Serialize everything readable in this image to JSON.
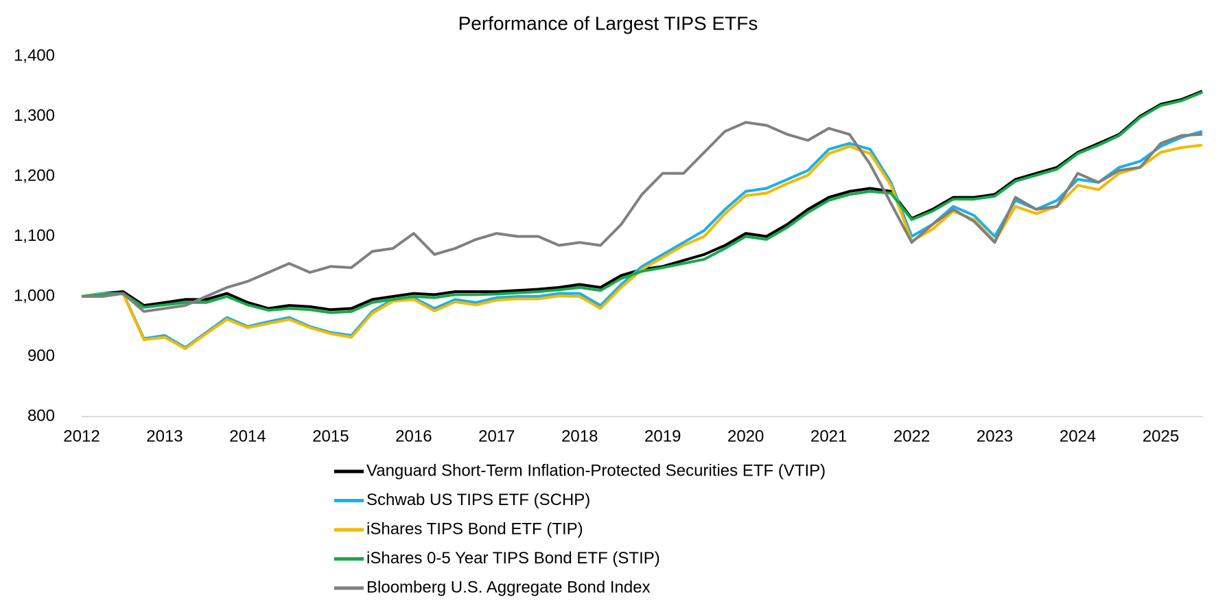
{
  "chart_data": {
    "type": "line",
    "title": "Performance of Largest TIPS ETFs",
    "x": [
      2012,
      2012.25,
      2012.5,
      2012.75,
      2013,
      2013.25,
      2013.5,
      2013.75,
      2014,
      2014.25,
      2014.5,
      2014.75,
      2015,
      2015.25,
      2015.5,
      2015.75,
      2016,
      2016.25,
      2016.5,
      2016.75,
      2017,
      2017.25,
      2017.5,
      2017.75,
      2018,
      2018.25,
      2018.5,
      2018.75,
      2019,
      2019.25,
      2019.5,
      2019.75,
      2020,
      2020.25,
      2020.5,
      2020.75,
      2021,
      2021.25,
      2021.5,
      2021.75,
      2022,
      2022.25,
      2022.5,
      2022.75,
      2023,
      2023.25,
      2023.5,
      2023.75,
      2024,
      2024.25,
      2024.5,
      2024.75,
      2025,
      2025.25,
      2025.5
    ],
    "xlim": [
      2012,
      2025.5
    ],
    "xticks": [
      2012,
      2013,
      2014,
      2015,
      2016,
      2017,
      2018,
      2019,
      2020,
      2021,
      2022,
      2023,
      2024,
      2025
    ],
    "ylim": [
      800,
      1400
    ],
    "yticks": [
      800,
      900,
      {
        "value": 1000,
        "label": "1,000"
      },
      {
        "value": 1100,
        "label": "1,100"
      },
      {
        "value": 1200,
        "label": "1,200"
      },
      {
        "value": 1300,
        "label": "1,300"
      },
      {
        "value": 1400,
        "label": "1,400"
      }
    ],
    "series": [
      {
        "name": "Vanguard Short-Term Inflation-Protected Securities ETF (VTIP)",
        "color": "#000000",
        "values": [
          1000,
          1005,
          1008,
          985,
          990,
          995,
          995,
          1005,
          990,
          980,
          985,
          983,
          978,
          980,
          995,
          1000,
          1005,
          1003,
          1008,
          1008,
          1008,
          1010,
          1012,
          1015,
          1020,
          1015,
          1035,
          1045,
          1050,
          1060,
          1070,
          1085,
          1105,
          1100,
          1120,
          1145,
          1165,
          1175,
          1180,
          1175,
          1130,
          1145,
          1165,
          1165,
          1170,
          1195,
          1205,
          1215,
          1240,
          1255,
          1270,
          1300,
          1320,
          1328,
          1342
        ]
      },
      {
        "name": "Schwab US TIPS ETF (SCHP)",
        "color": "#1ab0e8",
        "values": [
          1000,
          1005,
          1005,
          930,
          935,
          915,
          940,
          965,
          950,
          958,
          965,
          950,
          940,
          935,
          975,
          995,
          998,
          980,
          995,
          990,
          998,
          1000,
          1000,
          1005,
          1005,
          985,
          1020,
          1050,
          1070,
          1090,
          1110,
          1145,
          1175,
          1180,
          1195,
          1210,
          1245,
          1255,
          1245,
          1190,
          1100,
          1120,
          1150,
          1135,
          1100,
          1160,
          1145,
          1160,
          1195,
          1190,
          1215,
          1225,
          1250,
          1265,
          1275
        ]
      },
      {
        "name": "iShares TIPS Bond ETF (TIP)",
        "color": "#f5b800",
        "values": [
          1000,
          1004,
          1004,
          928,
          932,
          913,
          938,
          962,
          948,
          955,
          962,
          948,
          938,
          932,
          972,
          992,
          995,
          976,
          991,
          986,
          994,
          996,
          996,
          1001,
          1000,
          980,
          1015,
          1045,
          1065,
          1085,
          1100,
          1138,
          1168,
          1172,
          1188,
          1202,
          1238,
          1250,
          1238,
          1185,
          1092,
          1112,
          1142,
          1128,
          1092,
          1150,
          1138,
          1150,
          1185,
          1178,
          1205,
          1215,
          1240,
          1248,
          1252
        ]
      },
      {
        "name": "iShares 0-5 Year TIPS Bond ETF (STIP)",
        "color": "#17a84a",
        "values": [
          1000,
          1003,
          1005,
          982,
          986,
          990,
          990,
          1000,
          986,
          977,
          980,
          978,
          973,
          975,
          990,
          995,
          1000,
          998,
          1003,
          1003,
          1004,
          1006,
          1008,
          1011,
          1015,
          1010,
          1030,
          1042,
          1048,
          1055,
          1062,
          1080,
          1100,
          1095,
          1115,
          1140,
          1160,
          1170,
          1175,
          1172,
          1128,
          1142,
          1162,
          1162,
          1167,
          1192,
          1202,
          1212,
          1238,
          1252,
          1268,
          1298,
          1318,
          1326,
          1340
        ]
      },
      {
        "name": "Bloomberg U.S. Aggregate Bond Index",
        "color": "#808080",
        "values": [
          1000,
          1000,
          1005,
          975,
          980,
          985,
          1000,
          1015,
          1025,
          1040,
          1055,
          1040,
          1050,
          1048,
          1075,
          1080,
          1105,
          1070,
          1080,
          1095,
          1105,
          1100,
          1100,
          1085,
          1090,
          1085,
          1120,
          1170,
          1205,
          1205,
          1240,
          1275,
          1290,
          1285,
          1270,
          1260,
          1280,
          1270,
          1220,
          1155,
          1090,
          1120,
          1145,
          1125,
          1090,
          1165,
          1145,
          1150,
          1205,
          1190,
          1210,
          1215,
          1255,
          1268,
          1270
        ]
      }
    ]
  }
}
